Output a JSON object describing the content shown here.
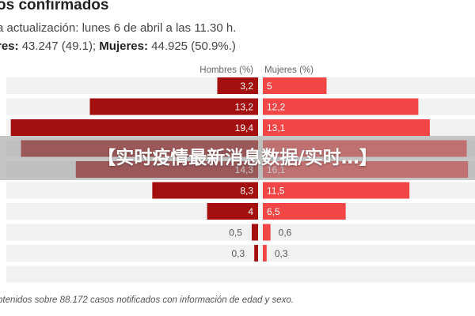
{
  "header": {
    "title": "os confirmados",
    "subtitle": "a actualización: lunes 6 de abril a las 11.30 h.",
    "men_label": "res:",
    "men_value": "43.247 (49.1);",
    "women_label": "Mujeres:",
    "women_value": "44.925 (50.9%.)"
  },
  "footnote": "btenidos sobre 88.172 casos notificados con información de edad y sexo.",
  "banner": {
    "text": "【实时疫情最新消息数据/实时…】"
  },
  "colors": {
    "men": "#a30e0e",
    "women": "#f24545",
    "row_bg": "#f1f1f1",
    "label_dark": "#555555",
    "label_light": "#ffffff"
  },
  "chart_data": {
    "type": "bar",
    "orientation": "horizontal-diverging",
    "column_headers": {
      "men": "Hombres (%)",
      "women": "Mujeres (%)"
    },
    "series": [
      {
        "name": "Hombres (%)",
        "labels": [
          "",
          "",
          "",
          "",
          "",
          "",
          "",
          "",
          "",
          ""
        ],
        "values": [
          3.2,
          13.2,
          19.4,
          18.6,
          14.3,
          8.3,
          4,
          0.5,
          0.3,
          0.0
        ],
        "display": [
          "3,2",
          "13,2",
          "19,4",
          "",
          "14,3",
          "8,3",
          "4",
          "0,5",
          "0,3",
          ""
        ]
      },
      {
        "name": "Mujeres (%)",
        "values": [
          5,
          12.2,
          13.1,
          16.0,
          16.1,
          11.5,
          6.5,
          0.6,
          0.3,
          0.0
        ],
        "display": [
          "5",
          "12,2",
          "13,1",
          "",
          "16,1",
          "11,5",
          "6,5",
          "0,6",
          "0,3",
          ""
        ]
      }
    ],
    "xlim": [
      0,
      20
    ]
  }
}
